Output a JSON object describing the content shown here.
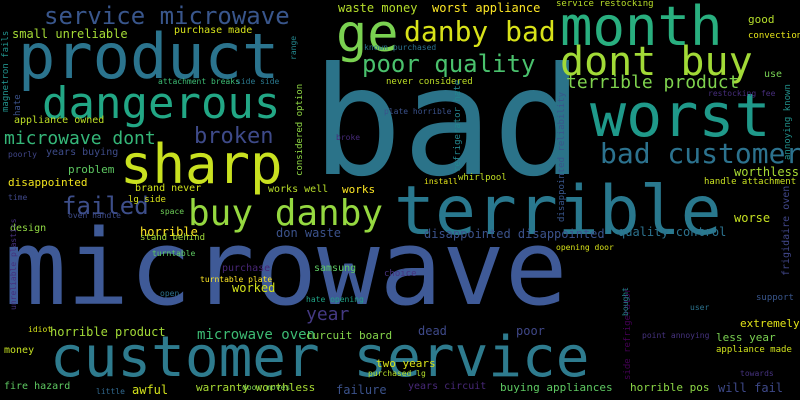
{
  "words": [
    {
      "t": "microwave",
      "c": "#3f5a97"
    },
    {
      "t": "bad",
      "c": "#2b7389"
    },
    {
      "t": "customer service",
      "c": "#2e7b8e"
    },
    {
      "t": "terrible",
      "c": "#29788e"
    },
    {
      "t": "product",
      "c": "#2b748e"
    },
    {
      "t": "worst",
      "c": "#1f998a"
    },
    {
      "t": "month",
      "c": "#29af7f"
    },
    {
      "t": "sharp",
      "c": "#c9e120"
    },
    {
      "t": "dangerous",
      "c": "#22a785"
    },
    {
      "t": "dont buy",
      "c": "#a2da37"
    },
    {
      "t": "buy danby",
      "c": "#95d840"
    },
    {
      "t": "ge",
      "c": "#7ad151"
    },
    {
      "t": "danby bad",
      "c": "#d8e219"
    },
    {
      "t": "service microwave",
      "c": "#39568c"
    },
    {
      "t": "bad customer",
      "c": "#2c728e"
    },
    {
      "t": "poor quality",
      "c": "#4ac16d"
    },
    {
      "t": "failed",
      "c": "#3d4e8a"
    },
    {
      "t": "broken",
      "c": "#3e4a89"
    },
    {
      "t": "terrible product",
      "c": "#7fd34e"
    },
    {
      "t": "microwave dont",
      "c": "#35b779"
    },
    {
      "t": "year",
      "c": "#443983"
    },
    {
      "t": "microwave oven",
      "c": "#3dbc74"
    },
    {
      "t": "horrible product",
      "c": "#a2da37"
    },
    {
      "t": "worst appliance",
      "c": "#fde725"
    },
    {
      "t": "waste money",
      "c": "#b5de2b"
    },
    {
      "t": "small unreliable",
      "c": "#a5db36"
    },
    {
      "t": "purchase made",
      "c": "#d5e21a"
    },
    {
      "t": "service restocking",
      "c": "#b8de29"
    },
    {
      "t": "good",
      "c": "#b5de2b"
    },
    {
      "t": "convection",
      "c": "#e5e419"
    },
    {
      "t": "appliance owned",
      "c": "#bddf26"
    },
    {
      "t": "never considered",
      "c": "#bddf26"
    },
    {
      "t": "disappointed",
      "c": "#f1e51d"
    },
    {
      "t": "worthless",
      "c": "#a8db34"
    },
    {
      "t": "handle attachment",
      "c": "#c8e020"
    },
    {
      "t": "works well",
      "c": "#b8de29"
    },
    {
      "t": "works",
      "c": "#fde725"
    },
    {
      "t": "brand never",
      "c": "#d0e11c"
    },
    {
      "t": "horrible",
      "c": "#fde725"
    },
    {
      "t": "lg side",
      "c": "#d8e219"
    },
    {
      "t": "design",
      "c": "#90d743"
    },
    {
      "t": "don waste",
      "c": "#3b528b"
    },
    {
      "t": "stand behind",
      "c": "#a0da39"
    },
    {
      "t": "worse",
      "c": "#c5e021"
    },
    {
      "t": "quality control",
      "c": "#2c728e"
    },
    {
      "t": "disappointed disappointed",
      "c": "#3b528b"
    },
    {
      "t": "worked",
      "c": "#d2e21b"
    },
    {
      "t": "less year",
      "c": "#7ad151"
    },
    {
      "t": "extremely",
      "c": "#e2e418"
    },
    {
      "t": "support",
      "c": "#39568c"
    },
    {
      "t": "appliance made",
      "c": "#d0e11c"
    },
    {
      "t": "will fail",
      "c": "#3e4989"
    },
    {
      "t": "horrible pos",
      "c": "#8bd646"
    },
    {
      "t": "buying appliances",
      "c": "#5ec962"
    },
    {
      "t": "failure",
      "c": "#3b528b"
    },
    {
      "t": "two years",
      "c": "#d8e219"
    },
    {
      "t": "curcuit board",
      "c": "#84d44b"
    },
    {
      "t": "dead",
      "c": "#3e4989"
    },
    {
      "t": "poor",
      "c": "#3f4788"
    },
    {
      "t": "samsung",
      "c": "#5ec962"
    },
    {
      "t": "purchase",
      "c": "#482677"
    },
    {
      "t": "choice",
      "c": "#46327e"
    },
    {
      "t": "problem",
      "c": "#5ec962"
    },
    {
      "t": "years buying",
      "c": "#3e4c8a"
    },
    {
      "t": "fire hazard",
      "c": "#5ec962"
    },
    {
      "t": "awful",
      "c": "#d2e21b"
    },
    {
      "t": "warranty worthless",
      "c": "#a8db34"
    },
    {
      "t": "years circuit",
      "c": "#482979"
    },
    {
      "t": "money",
      "c": "#c5e021"
    },
    {
      "t": "idiot",
      "c": "#d5e21a"
    },
    {
      "t": "little",
      "c": "#31688e"
    },
    {
      "t": "door moves",
      "c": "#7ad151"
    },
    {
      "t": "purchased lg",
      "c": "#b5de2b"
    },
    {
      "t": "hate opening",
      "c": "#20a386"
    },
    {
      "t": "turntable plate",
      "c": "#fde725"
    },
    {
      "t": "open",
      "c": "#2c728e"
    },
    {
      "t": "turntable",
      "c": "#5ec962"
    },
    {
      "t": "oven handle",
      "c": "#3e4c8a"
    },
    {
      "t": "space",
      "c": "#6ece58"
    },
    {
      "t": "time",
      "c": "#3f4889"
    },
    {
      "t": "poorly",
      "c": "#404688"
    },
    {
      "t": "user",
      "c": "#2c738e"
    },
    {
      "t": "towards",
      "c": "#46337f"
    },
    {
      "t": "point annoying",
      "c": "#46337f"
    },
    {
      "t": "install",
      "c": "#e5e419"
    },
    {
      "t": "whirlpool",
      "c": "#c2df23"
    },
    {
      "t": "plate horrible",
      "c": "#3b528b"
    },
    {
      "t": "known purchased",
      "c": "#2c728e"
    },
    {
      "t": "attachment breaks",
      "c": "#3dbc74"
    },
    {
      "t": "side side",
      "c": "#2a788e"
    },
    {
      "t": "restocking fee",
      "c": "#472e7c"
    },
    {
      "t": "use",
      "c": "#77d153"
    },
    {
      "t": "opening door",
      "c": "#d8e219"
    },
    {
      "t": "broke",
      "c": "#472a7a"
    },
    {
      "t": "magnetron fails",
      "c": "#21918c",
      "v": true
    },
    {
      "t": "hate",
      "c": "#3b528b",
      "v": true
    },
    {
      "t": "range",
      "c": "#24878e",
      "v": true
    },
    {
      "t": "considered option",
      "c": "#8fd744",
      "v": true
    },
    {
      "t": "refrigerator hate",
      "c": "#24868e",
      "v": true
    },
    {
      "t": "disappointed reliability",
      "c": "#39568c",
      "v": true
    },
    {
      "t": "frigidaire oven",
      "c": "#404688",
      "v": true
    },
    {
      "t": "annoying known",
      "c": "#21918c",
      "v": true
    },
    {
      "t": "side refrigerator",
      "c": "#440154",
      "v": true
    },
    {
      "t": "fail",
      "c": "#2a778e",
      "v": true
    },
    {
      "t": "unreliable plastics",
      "c": "#46327e",
      "v": true
    },
    {
      "t": "bought",
      "c": "#26828e",
      "v": true
    }
  ]
}
